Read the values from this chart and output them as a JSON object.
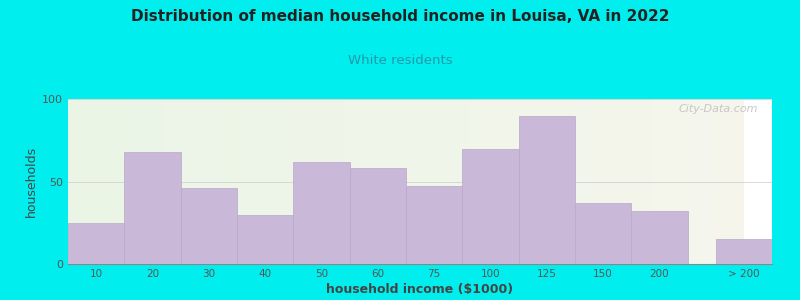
{
  "title": "Distribution of median household income in Louisa, VA in 2022",
  "subtitle": "White residents",
  "xlabel": "household income ($1000)",
  "ylabel": "households",
  "background_outer": "#00EEEE",
  "bar_color": "#c9b8d8",
  "bar_edge_color": "#b8a8cc",
  "title_color": "#222222",
  "subtitle_color": "#2299aa",
  "axis_label_color": "#444444",
  "tick_label_color": "#555555",
  "categories": [
    "10",
    "20",
    "30",
    "40",
    "50",
    "60",
    "75",
    "100",
    "125",
    "150",
    "200",
    "> 200"
  ],
  "values": [
    25,
    68,
    46,
    30,
    62,
    58,
    47,
    70,
    90,
    37,
    32,
    15
  ],
  "ylim": [
    0,
    100
  ],
  "yticks": [
    0,
    50,
    100
  ],
  "watermark": "City-Data.com",
  "bg_left_color": "#eaf5e6",
  "bg_right_color": "#f5f5ec",
  "grid_color": "#cccccc"
}
